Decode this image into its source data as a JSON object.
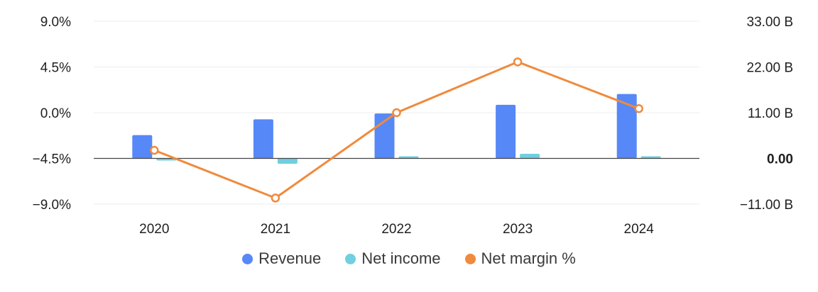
{
  "chart_data": {
    "type": "bar",
    "categories": [
      "2020",
      "2021",
      "2022",
      "2023",
      "2024"
    ],
    "series": [
      {
        "name": "Revenue",
        "type": "bar",
        "axis": "right",
        "unit": "B",
        "values": [
          5.6,
          9.4,
          10.8,
          12.9,
          15.5
        ],
        "color": "#5688f7"
      },
      {
        "name": "Net income",
        "type": "bar",
        "axis": "right",
        "unit": "B",
        "values": [
          -0.2,
          -1.3,
          0.2,
          1.1,
          0.3
        ],
        "color": "#70cfe0"
      },
      {
        "name": "Net margin %",
        "type": "line",
        "axis": "left",
        "unit": "%",
        "values": [
          -3.7,
          -8.4,
          0.0,
          5.0,
          0.4
        ],
        "color": "#f08a3c"
      }
    ],
    "y_left": {
      "ylim": [
        -9.0,
        9.0
      ],
      "ticks": [
        9.0,
        4.5,
        0.0,
        -4.5,
        -9.0
      ],
      "tick_labels": [
        "9.0%",
        "4.5%",
        "0.0%",
        "−4.5%",
        "−9.0%"
      ]
    },
    "y_right": {
      "ylim": [
        -11.0,
        33.0
      ],
      "ticks": [
        33,
        22,
        11,
        0,
        -11
      ],
      "tick_labels": [
        "33.00 B",
        "22.00 B",
        "11.00 B",
        "0.00",
        "−11.00 B"
      ]
    },
    "grid": true,
    "legend": "bottom-center"
  }
}
